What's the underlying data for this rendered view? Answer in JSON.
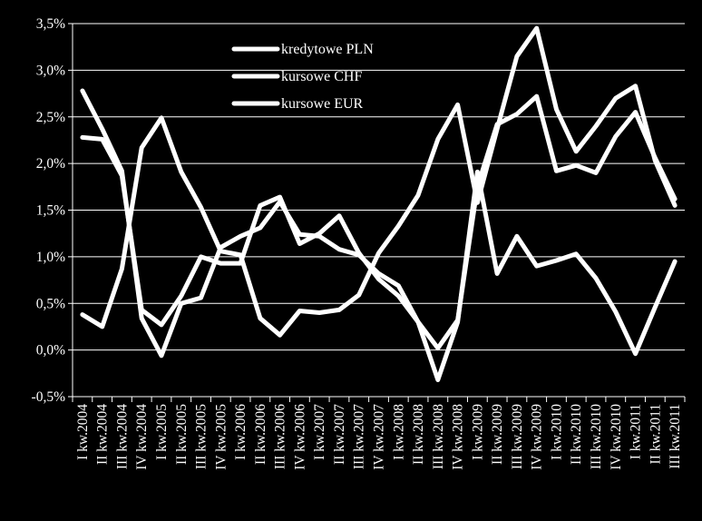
{
  "chart_data": {
    "type": "line",
    "title": "",
    "xlabel": "",
    "ylabel": "",
    "ylim": [
      -0.5,
      3.5
    ],
    "y_tick_step": 0.5,
    "y_tick_labels": [
      "-0,5%",
      "0,0%",
      "0,5%",
      "1,0%",
      "1,5%",
      "2,0%",
      "2,5%",
      "3,0%",
      "3,5%"
    ],
    "grid": "horizontal",
    "legend_position": "top-left",
    "background_color": "#000000",
    "foreground_color": "#ffffff",
    "categories": [
      "I kw.2004",
      "II kw.2004",
      "III kw.2004",
      "IV kw.2004",
      "I kw.2005",
      "II kw.2005",
      "III kw.2005",
      "IV kw.2005",
      "I kw.2006",
      "II kw.2006",
      "III kw.2006",
      "IV kw.2006",
      "I kw.2007",
      "II kw.2007",
      "III kw.2007",
      "IV kw.2007",
      "I kw.2008",
      "II kw.2008",
      "III kw.2008",
      "IV kw.2008",
      "I kw.2009",
      "II kw.2009",
      "III kw.2009",
      "IV kw.2009",
      "I kw.2010",
      "II kw.2010",
      "III kw.2010",
      "IV kw.2010",
      "I kw.2011",
      "II kw.2011",
      "III kw.2011"
    ],
    "series": [
      {
        "name": "kredytowe PLN",
        "color": "#ffffff",
        "values": [
          2.78,
          2.37,
          1.92,
          0.34,
          -0.06,
          0.5,
          0.56,
          1.1,
          1.22,
          1.31,
          1.59,
          1.24,
          1.22,
          1.08,
          1.02,
          0.82,
          0.69,
          0.3,
          -0.32,
          0.3,
          1.91,
          0.82,
          1.22,
          0.9,
          0.96,
          1.03,
          0.77,
          0.41,
          -0.04,
          0.46,
          0.95
        ]
      },
      {
        "name": "kursowe CHF",
        "color": "#ffffff",
        "values": [
          0.38,
          0.25,
          0.87,
          2.17,
          2.49,
          1.91,
          1.53,
          1.06,
          1.02,
          0.34,
          0.16,
          0.42,
          0.4,
          0.43,
          0.59,
          1.04,
          1.33,
          1.66,
          2.26,
          2.63,
          1.58,
          2.37,
          3.15,
          3.45,
          2.58,
          2.13,
          2.4,
          2.7,
          2.83,
          2.03,
          1.55
        ]
      },
      {
        "name": "kursowe EUR",
        "color": "#ffffff",
        "values": [
          2.28,
          2.26,
          1.87,
          0.43,
          0.27,
          0.58,
          1.0,
          0.93,
          0.93,
          1.55,
          1.64,
          1.14,
          1.25,
          1.44,
          1.04,
          0.76,
          0.58,
          0.3,
          0.02,
          0.32,
          1.75,
          2.42,
          2.53,
          2.72,
          1.92,
          1.98,
          1.9,
          2.29,
          2.55,
          2.06,
          1.62
        ]
      }
    ]
  }
}
